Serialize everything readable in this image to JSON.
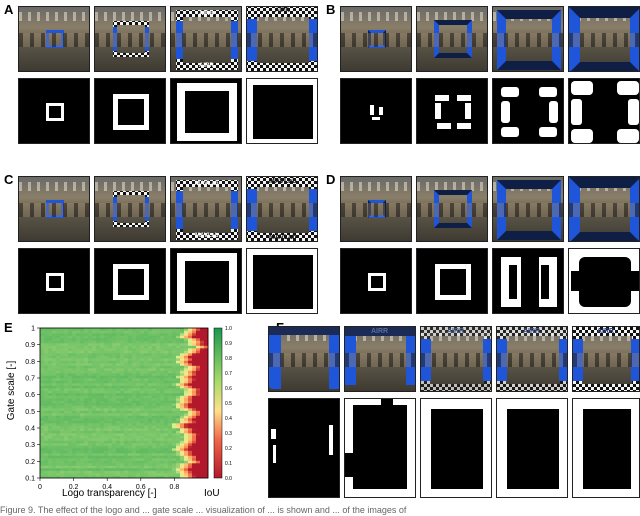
{
  "figure": {
    "panel_labels": [
      "A",
      "B",
      "C",
      "D",
      "E",
      "F"
    ],
    "logos": {
      "airr": "AIRR",
      "mavlab": "MAVLab"
    },
    "caption_fragment": "Figure 9. The effect of the logo and ... gate scale ... visualization of ... is shown and ... of the images of"
  },
  "chart_data": {
    "type": "heatmap",
    "title": "",
    "xlabel": "Logo transparency [-]",
    "ylabel": "Gate scale [-]",
    "xlim": [
      0,
      1
    ],
    "ylim": [
      0.1,
      1.0
    ],
    "xticks": [
      "0",
      "0.2",
      "0.4",
      "0.6",
      "0.8"
    ],
    "yticks": [
      "0.1",
      "0.2",
      "0.3",
      "0.4",
      "0.5",
      "0.6",
      "0.7",
      "0.8",
      "0.9",
      "1"
    ],
    "colorbar_label": "IoU",
    "colorbar_ticks": [
      "0.0",
      "0.1",
      "0.2",
      "0.3",
      "0.4",
      "0.5",
      "0.6",
      "0.7",
      "0.8",
      "0.9",
      "1.0"
    ],
    "colormap": [
      "#b2182b",
      "#ef6548",
      "#fdae61",
      "#fee08b",
      "#d9ef8b",
      "#66bd63",
      "#1a9850"
    ],
    "transition_transparency": 0.85,
    "iou_high": 0.85,
    "iou_low": 0.0
  }
}
